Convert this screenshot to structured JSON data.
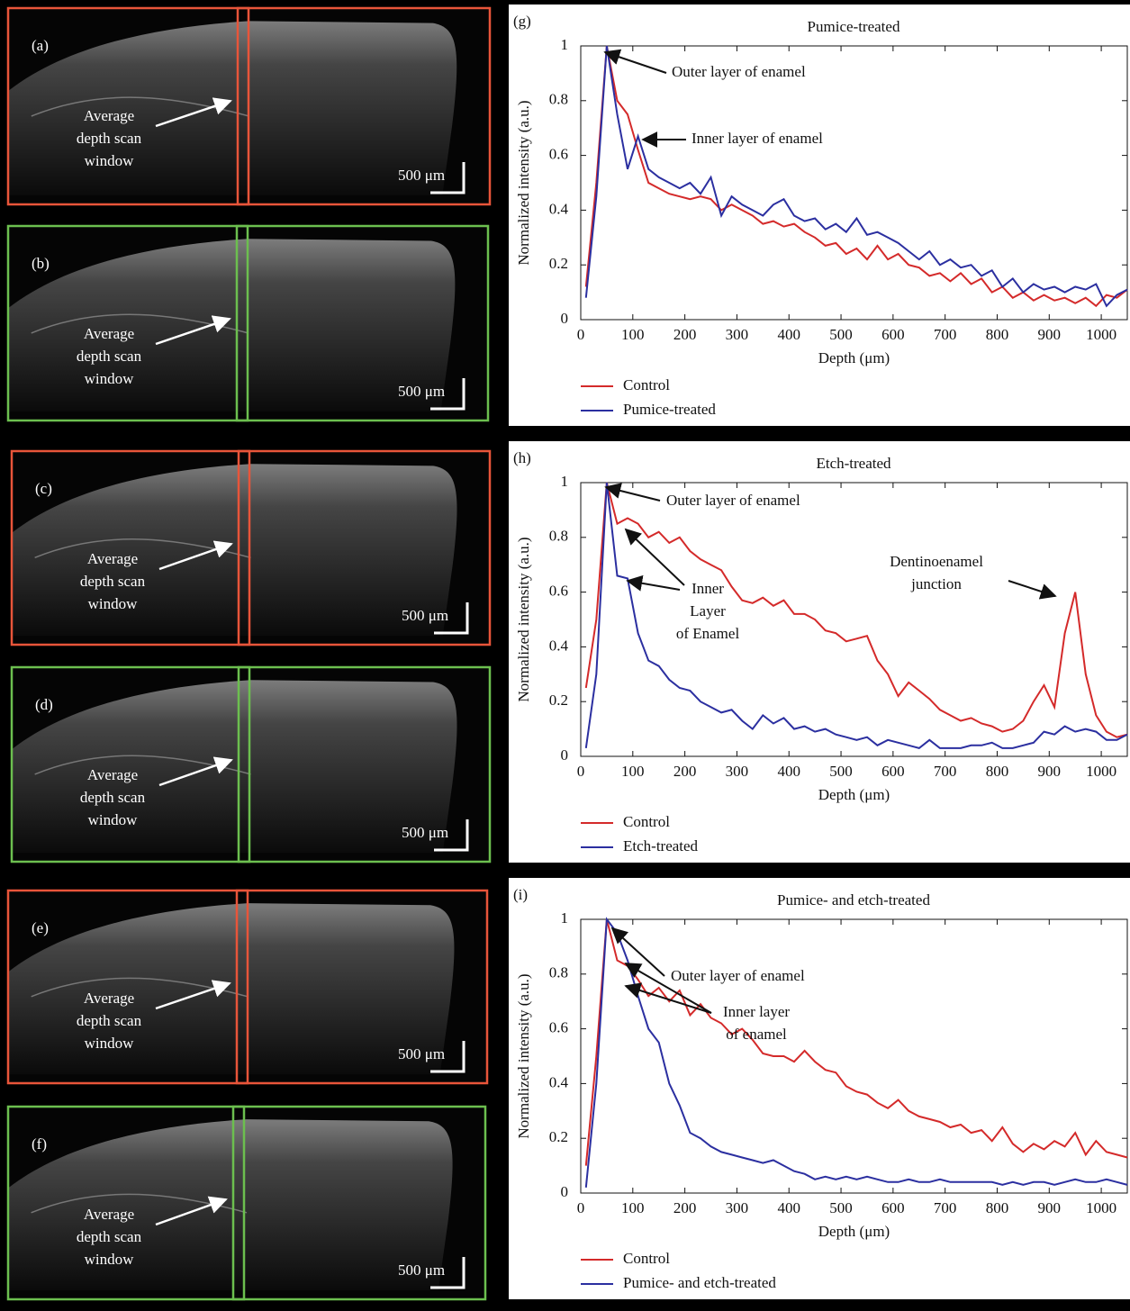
{
  "images": [
    {
      "label": "(a)",
      "annotation": [
        "Average",
        "depth scan",
        "window"
      ],
      "scale": "500 μm",
      "frame_color": "#e8553a"
    },
    {
      "label": "(b)",
      "annotation": [
        "Average",
        "depth scan",
        "window"
      ],
      "scale": "500 μm",
      "frame_color": "#6cbf4f"
    },
    {
      "label": "(c)",
      "annotation": [
        "Average",
        "depth scan",
        "window"
      ],
      "scale": "500 μm",
      "frame_color": "#e8553a"
    },
    {
      "label": "(d)",
      "annotation": [
        "Average",
        "depth scan",
        "window"
      ],
      "scale": "500 μm",
      "frame_color": "#6cbf4f"
    },
    {
      "label": "(e)",
      "annotation": [
        "Average",
        "depth scan",
        "window"
      ],
      "scale": "500 μm",
      "frame_color": "#e8553a"
    },
    {
      "label": "(f)",
      "annotation": [
        "Average",
        "depth scan",
        "window"
      ],
      "scale": "500 μm",
      "frame_color": "#6cbf4f"
    }
  ],
  "chart_data": [
    {
      "type": "line",
      "panel_label": "(g)",
      "title": "Pumice-treated",
      "x_label": "Depth (μm)",
      "y_label": "Normalized intensity (a.u.)",
      "xlim": [
        0,
        1050
      ],
      "ylim": [
        0,
        1
      ],
      "xticks": [
        0,
        100,
        200,
        300,
        400,
        500,
        600,
        700,
        800,
        900,
        1000
      ],
      "yticks": [
        0,
        0.2,
        0.4,
        0.6,
        0.8,
        1
      ],
      "x": [
        10,
        30,
        50,
        70,
        90,
        110,
        130,
        150,
        170,
        190,
        210,
        230,
        250,
        270,
        290,
        310,
        330,
        350,
        370,
        390,
        410,
        430,
        450,
        470,
        490,
        510,
        530,
        550,
        570,
        590,
        610,
        630,
        650,
        670,
        690,
        710,
        730,
        750,
        770,
        790,
        810,
        830,
        850,
        870,
        890,
        910,
        930,
        950,
        970,
        990,
        1010,
        1030,
        1050
      ],
      "series": [
        {
          "name": "Control",
          "color": "#d42a2a",
          "values": [
            0.12,
            0.5,
            1.0,
            0.8,
            0.75,
            0.62,
            0.5,
            0.48,
            0.46,
            0.45,
            0.44,
            0.45,
            0.44,
            0.4,
            0.42,
            0.4,
            0.38,
            0.35,
            0.36,
            0.34,
            0.35,
            0.32,
            0.3,
            0.27,
            0.28,
            0.24,
            0.26,
            0.22,
            0.27,
            0.22,
            0.24,
            0.2,
            0.19,
            0.16,
            0.17,
            0.14,
            0.17,
            0.13,
            0.15,
            0.1,
            0.12,
            0.08,
            0.1,
            0.07,
            0.09,
            0.07,
            0.08,
            0.06,
            0.08,
            0.05,
            0.09,
            0.08,
            0.11
          ]
        },
        {
          "name": "Pumice-treated",
          "color": "#2b2fa0",
          "values": [
            0.08,
            0.45,
            1.0,
            0.75,
            0.55,
            0.67,
            0.55,
            0.52,
            0.5,
            0.48,
            0.5,
            0.46,
            0.52,
            0.38,
            0.45,
            0.42,
            0.4,
            0.38,
            0.42,
            0.44,
            0.38,
            0.36,
            0.37,
            0.33,
            0.35,
            0.32,
            0.37,
            0.31,
            0.32,
            0.3,
            0.28,
            0.25,
            0.22,
            0.25,
            0.2,
            0.22,
            0.19,
            0.2,
            0.16,
            0.18,
            0.12,
            0.15,
            0.1,
            0.13,
            0.11,
            0.12,
            0.1,
            0.12,
            0.11,
            0.13,
            0.05,
            0.09,
            0.11
          ]
        }
      ],
      "annotations": [
        {
          "text": [
            "Outer layer of enamel"
          ]
        },
        {
          "text": [
            "Inner layer of enamel"
          ]
        }
      ]
    },
    {
      "type": "line",
      "panel_label": "(h)",
      "title": "Etch-treated",
      "x_label": "Depth (μm)",
      "y_label": "Normalized intensity (a.u.)",
      "xlim": [
        0,
        1050
      ],
      "ylim": [
        0,
        1
      ],
      "xticks": [
        0,
        100,
        200,
        300,
        400,
        500,
        600,
        700,
        800,
        900,
        1000
      ],
      "yticks": [
        0,
        0.2,
        0.4,
        0.6,
        0.8,
        1
      ],
      "x": [
        10,
        30,
        50,
        70,
        90,
        110,
        130,
        150,
        170,
        190,
        210,
        230,
        250,
        270,
        290,
        310,
        330,
        350,
        370,
        390,
        410,
        430,
        450,
        470,
        490,
        510,
        530,
        550,
        570,
        590,
        610,
        630,
        650,
        670,
        690,
        710,
        730,
        750,
        770,
        790,
        810,
        830,
        850,
        870,
        890,
        910,
        930,
        950,
        970,
        990,
        1010,
        1030,
        1050
      ],
      "series": [
        {
          "name": "Control",
          "color": "#d42a2a",
          "values": [
            0.25,
            0.5,
            1.0,
            0.85,
            0.87,
            0.85,
            0.8,
            0.82,
            0.78,
            0.8,
            0.75,
            0.72,
            0.7,
            0.68,
            0.62,
            0.57,
            0.56,
            0.58,
            0.55,
            0.57,
            0.52,
            0.52,
            0.5,
            0.46,
            0.45,
            0.42,
            0.43,
            0.44,
            0.35,
            0.3,
            0.22,
            0.27,
            0.24,
            0.21,
            0.17,
            0.15,
            0.13,
            0.14,
            0.12,
            0.11,
            0.09,
            0.1,
            0.13,
            0.2,
            0.26,
            0.18,
            0.45,
            0.6,
            0.3,
            0.15,
            0.09,
            0.07,
            0.08
          ]
        },
        {
          "name": "Etch-treated",
          "color": "#2b2fa0",
          "values": [
            0.03,
            0.3,
            1.0,
            0.66,
            0.65,
            0.45,
            0.35,
            0.33,
            0.28,
            0.25,
            0.24,
            0.2,
            0.18,
            0.16,
            0.17,
            0.13,
            0.1,
            0.15,
            0.12,
            0.14,
            0.1,
            0.11,
            0.09,
            0.1,
            0.08,
            0.07,
            0.06,
            0.07,
            0.04,
            0.06,
            0.05,
            0.04,
            0.03,
            0.06,
            0.03,
            0.03,
            0.03,
            0.04,
            0.04,
            0.05,
            0.03,
            0.03,
            0.04,
            0.05,
            0.09,
            0.08,
            0.11,
            0.09,
            0.1,
            0.09,
            0.06,
            0.06,
            0.08
          ]
        }
      ],
      "annotations": [
        {
          "text": [
            "Outer layer of enamel"
          ]
        },
        {
          "text": [
            "Inner",
            "Layer",
            "of Enamel"
          ]
        },
        {
          "text": [
            "Dentinoenamel",
            "junction"
          ]
        }
      ]
    },
    {
      "type": "line",
      "panel_label": "(i)",
      "title": "Pumice- and etch-treated",
      "x_label": "Depth (μm)",
      "y_label": "Normalized intensity (a.u.)",
      "xlim": [
        0,
        1050
      ],
      "ylim": [
        0,
        1
      ],
      "xticks": [
        0,
        100,
        200,
        300,
        400,
        500,
        600,
        700,
        800,
        900,
        1000
      ],
      "yticks": [
        0,
        0.2,
        0.4,
        0.6,
        0.8,
        1
      ],
      "x": [
        10,
        30,
        50,
        70,
        90,
        110,
        130,
        150,
        170,
        190,
        210,
        230,
        250,
        270,
        290,
        310,
        330,
        350,
        370,
        390,
        410,
        430,
        450,
        470,
        490,
        510,
        530,
        550,
        570,
        590,
        610,
        630,
        650,
        670,
        690,
        710,
        730,
        750,
        770,
        790,
        810,
        830,
        850,
        870,
        890,
        910,
        930,
        950,
        970,
        990,
        1010,
        1030,
        1050
      ],
      "series": [
        {
          "name": "Control",
          "color": "#d42a2a",
          "values": [
            0.1,
            0.5,
            1.0,
            0.85,
            0.83,
            0.78,
            0.72,
            0.75,
            0.7,
            0.74,
            0.65,
            0.69,
            0.64,
            0.62,
            0.58,
            0.6,
            0.56,
            0.51,
            0.5,
            0.5,
            0.48,
            0.52,
            0.48,
            0.45,
            0.44,
            0.39,
            0.37,
            0.36,
            0.33,
            0.31,
            0.34,
            0.3,
            0.28,
            0.27,
            0.26,
            0.24,
            0.25,
            0.22,
            0.23,
            0.19,
            0.24,
            0.18,
            0.15,
            0.18,
            0.16,
            0.19,
            0.17,
            0.22,
            0.14,
            0.19,
            0.15,
            0.14,
            0.13
          ]
        },
        {
          "name": "Pumice- and etch-treated",
          "color": "#2b2fa0",
          "values": [
            0.02,
            0.4,
            1.0,
            0.95,
            0.85,
            0.72,
            0.6,
            0.55,
            0.4,
            0.32,
            0.22,
            0.2,
            0.17,
            0.15,
            0.14,
            0.13,
            0.12,
            0.11,
            0.12,
            0.1,
            0.08,
            0.07,
            0.05,
            0.06,
            0.05,
            0.06,
            0.05,
            0.06,
            0.05,
            0.04,
            0.04,
            0.05,
            0.04,
            0.04,
            0.05,
            0.04,
            0.04,
            0.04,
            0.04,
            0.04,
            0.03,
            0.04,
            0.03,
            0.04,
            0.04,
            0.03,
            0.04,
            0.05,
            0.04,
            0.04,
            0.05,
            0.04,
            0.03
          ]
        }
      ],
      "annotations": [
        {
          "text": [
            "Outer layer of enamel"
          ]
        },
        {
          "text": [
            "Inner layer",
            "of enamel"
          ]
        }
      ]
    }
  ]
}
